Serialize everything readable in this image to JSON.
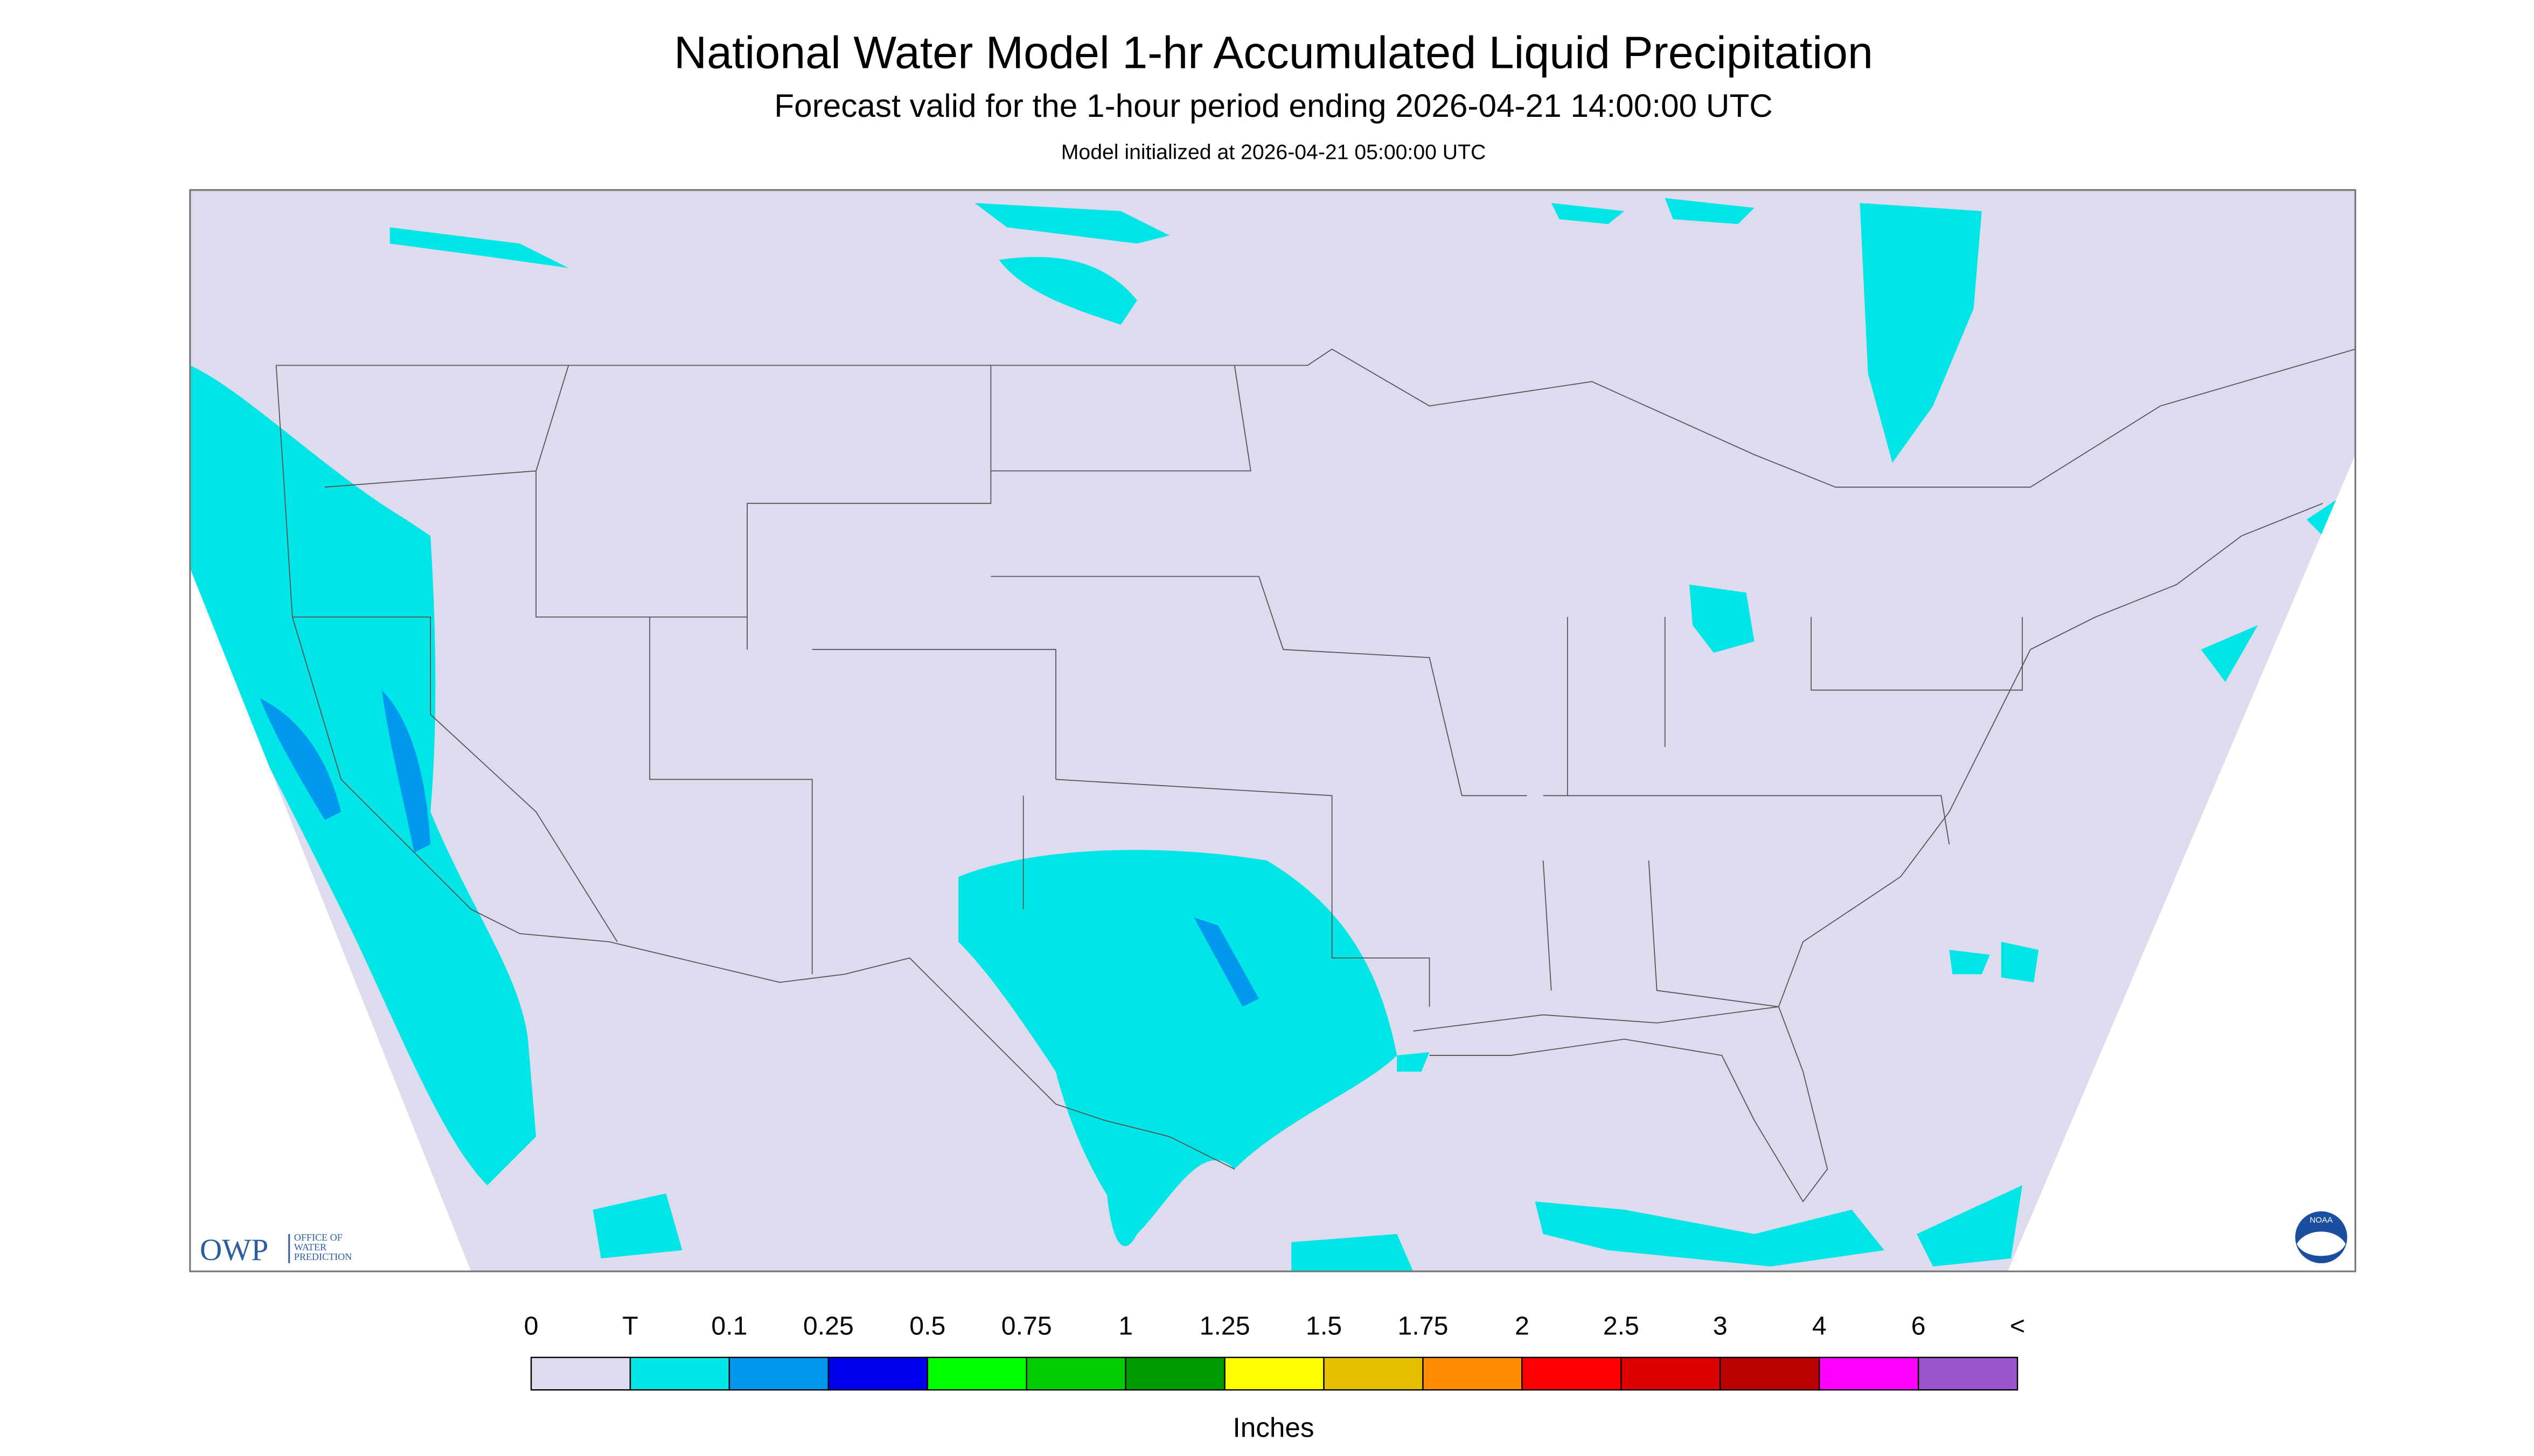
{
  "header": {
    "title": "National Water Model 1-hr Accumulated Liquid Precipitation",
    "subtitle": "Forecast valid for the 1-hour period ending 2026-04-21 14:00:00 UTC",
    "init": "Model initialized at 2026-04-21 05:00:00 UTC"
  },
  "logos": {
    "owp": "OWP",
    "owp_name": [
      "OFFICE OF",
      "WATER",
      "PREDICTION"
    ],
    "noaa": "NOAA"
  },
  "legend": {
    "labels": [
      "0",
      "T",
      "0.1",
      "0.25",
      "0.5",
      "0.75",
      "1",
      "1.25",
      "1.5",
      "1.75",
      "2",
      "2.5",
      "3",
      "4",
      "6",
      "<"
    ],
    "colors": [
      "#dcdcee",
      "#00e5e5",
      "#0099ee",
      "#0000ee",
      "#00ff00",
      "#00cc00",
      "#009900",
      "#ffff00",
      "#e6bf00",
      "#ff8c00",
      "#ff0000",
      "#dd0000",
      "#bb0000",
      "#ff00ff",
      "#9955cc"
    ],
    "unit": "Inches"
  }
}
